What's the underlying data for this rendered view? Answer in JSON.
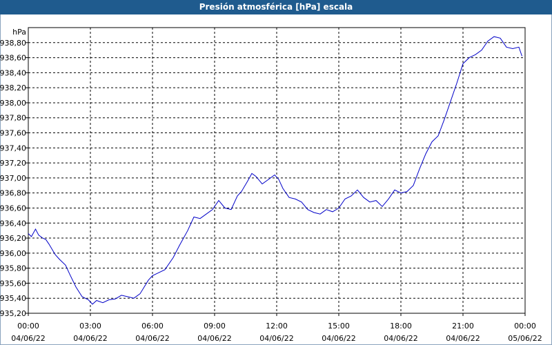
{
  "chart_data": {
    "type": "line",
    "title": "Presión atmosférica [hPa] escala",
    "ylabel": "hPa",
    "xlabel": "",
    "ylim": [
      935.2,
      939.0
    ],
    "xlim": [
      0,
      24
    ],
    "grid": true,
    "y_ticks": [
      {
        "value": 935.2,
        "label": "935,20"
      },
      {
        "value": 935.4,
        "label": "935,40"
      },
      {
        "value": 935.6,
        "label": "935,60"
      },
      {
        "value": 935.8,
        "label": "935,80"
      },
      {
        "value": 936.0,
        "label": "936,00"
      },
      {
        "value": 936.2,
        "label": "936,20"
      },
      {
        "value": 936.4,
        "label": "936,40"
      },
      {
        "value": 936.6,
        "label": "936,60"
      },
      {
        "value": 936.8,
        "label": "936,80"
      },
      {
        "value": 937.0,
        "label": "937,00"
      },
      {
        "value": 937.2,
        "label": "937,20"
      },
      {
        "value": 937.4,
        "label": "937,40"
      },
      {
        "value": 937.6,
        "label": "937,60"
      },
      {
        "value": 937.8,
        "label": "937,80"
      },
      {
        "value": 938.0,
        "label": "938,00"
      },
      {
        "value": 938.2,
        "label": "938,20"
      },
      {
        "value": 938.4,
        "label": "938,40"
      },
      {
        "value": 938.6,
        "label": "938,60"
      },
      {
        "value": 938.8,
        "label": "938,80"
      }
    ],
    "x_ticks": [
      {
        "value": 0,
        "time": "00:00",
        "date": "04/06/22"
      },
      {
        "value": 3,
        "time": "03:00",
        "date": "04/06/22"
      },
      {
        "value": 6,
        "time": "06:00",
        "date": "04/06/22"
      },
      {
        "value": 9,
        "time": "09:00",
        "date": "04/06/22"
      },
      {
        "value": 12,
        "time": "12:00",
        "date": "04/06/22"
      },
      {
        "value": 15,
        "time": "15:00",
        "date": "04/06/22"
      },
      {
        "value": 18,
        "time": "18:00",
        "date": "04/06/22"
      },
      {
        "value": 21,
        "time": "21:00",
        "date": "04/06/22"
      },
      {
        "value": 24,
        "time": "00:00",
        "date": "05/06/22"
      }
    ],
    "series": [
      {
        "color": "#0000c8",
        "x": [
          0.0,
          0.15,
          0.35,
          0.5,
          0.7,
          0.85,
          1.0,
          1.3,
          1.5,
          1.8,
          2.0,
          2.3,
          2.6,
          2.9,
          3.1,
          3.3,
          3.6,
          3.9,
          4.2,
          4.5,
          4.8,
          5.1,
          5.4,
          5.8,
          6.0,
          6.3,
          6.6,
          7.0,
          7.3,
          7.7,
          8.0,
          8.3,
          8.6,
          8.9,
          9.2,
          9.5,
          9.8,
          10.1,
          10.3,
          10.6,
          10.8,
          11.0,
          11.3,
          11.6,
          11.9,
          12.1,
          12.3,
          12.6,
          12.9,
          13.2,
          13.5,
          13.8,
          14.1,
          14.4,
          14.7,
          15.0,
          15.3,
          15.6,
          15.9,
          16.2,
          16.5,
          16.8,
          17.1,
          17.4,
          17.7,
          18.0,
          18.3,
          18.6,
          18.9,
          19.2,
          19.5,
          19.8,
          20.1,
          20.4,
          20.7,
          21.0,
          21.3,
          21.6,
          21.9,
          22.2,
          22.5,
          22.8,
          23.1,
          23.4,
          23.7,
          23.85
        ],
        "y": [
          936.26,
          936.22,
          936.32,
          936.24,
          936.2,
          936.18,
          936.12,
          935.98,
          935.92,
          935.84,
          935.72,
          935.55,
          935.42,
          935.38,
          935.32,
          935.37,
          935.34,
          935.38,
          935.39,
          935.44,
          935.42,
          935.4,
          935.46,
          935.64,
          935.7,
          935.74,
          935.78,
          935.94,
          936.1,
          936.3,
          936.48,
          936.46,
          936.52,
          936.58,
          936.7,
          936.6,
          936.58,
          936.76,
          936.82,
          936.96,
          937.06,
          937.02,
          936.92,
          936.98,
          937.04,
          936.98,
          936.86,
          936.74,
          936.72,
          936.68,
          936.58,
          936.54,
          936.52,
          936.58,
          936.55,
          936.6,
          936.72,
          936.76,
          936.84,
          936.74,
          936.68,
          936.7,
          936.62,
          936.72,
          936.84,
          936.8,
          936.82,
          936.9,
          937.12,
          937.32,
          937.48,
          937.56,
          937.78,
          938.02,
          938.26,
          938.52,
          938.6,
          938.64,
          938.7,
          938.82,
          938.88,
          938.86,
          938.74,
          938.72,
          938.74,
          938.62
        ]
      }
    ]
  }
}
